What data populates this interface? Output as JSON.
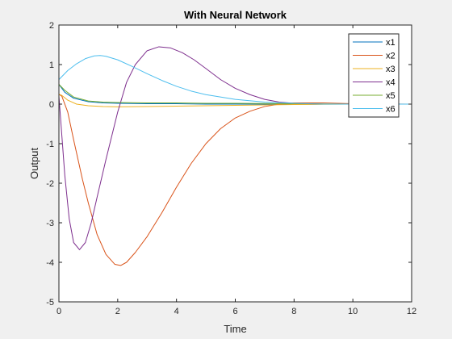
{
  "chart_data": {
    "type": "line",
    "title": "With Neural Network",
    "xlabel": "Time",
    "ylabel": "Output",
    "xlim": [
      0,
      12
    ],
    "ylim": [
      -5,
      2
    ],
    "xticks": [
      0,
      2,
      4,
      6,
      8,
      10,
      12
    ],
    "yticks": [
      -5,
      -4,
      -3,
      -2,
      -1,
      0,
      1,
      2
    ],
    "grid": false,
    "legend_position": "top-right",
    "series": [
      {
        "name": "x1",
        "color": "#0072BD",
        "x": [
          0,
          0.2,
          0.5,
          1,
          1.5,
          2,
          3,
          4,
          5,
          6,
          8,
          10,
          12
        ],
        "y": [
          0.5,
          0.3,
          0.15,
          0.06,
          0.03,
          0.02,
          0.01,
          0.01,
          0.0,
          0.0,
          0.0,
          0.0,
          0.0
        ]
      },
      {
        "name": "x2",
        "color": "#D95319",
        "x": [
          0,
          0.1,
          0.3,
          0.5,
          0.8,
          1,
          1.3,
          1.6,
          1.9,
          2.1,
          2.3,
          2.6,
          3,
          3.5,
          4,
          4.5,
          5,
          5.5,
          6,
          6.5,
          7,
          7.5,
          8,
          9,
          10,
          12
        ],
        "y": [
          0.25,
          0.2,
          -0.2,
          -0.9,
          -1.9,
          -2.5,
          -3.3,
          -3.8,
          -4.05,
          -4.08,
          -4.0,
          -3.75,
          -3.35,
          -2.75,
          -2.1,
          -1.5,
          -1.0,
          -0.62,
          -0.35,
          -0.18,
          -0.06,
          0.0,
          0.03,
          0.03,
          0.01,
          0.0
        ]
      },
      {
        "name": "x3",
        "color": "#EDB120",
        "x": [
          0,
          0.1,
          0.3,
          0.6,
          1,
          1.5,
          2,
          3,
          4,
          6,
          8,
          10,
          12
        ],
        "y": [
          0.25,
          0.22,
          0.1,
          0.0,
          -0.04,
          -0.06,
          -0.07,
          -0.06,
          -0.05,
          -0.03,
          -0.01,
          0.0,
          0.0
        ]
      },
      {
        "name": "x4",
        "color": "#7E2F8E",
        "x": [
          0,
          0.1,
          0.2,
          0.35,
          0.5,
          0.7,
          0.9,
          1.1,
          1.3,
          1.6,
          2,
          2.3,
          2.6,
          3,
          3.4,
          3.8,
          4.2,
          4.6,
          5,
          5.5,
          6,
          6.5,
          7,
          7.5,
          8,
          9,
          10,
          12
        ],
        "y": [
          0.2,
          -0.8,
          -1.8,
          -2.9,
          -3.5,
          -3.68,
          -3.5,
          -3.0,
          -2.35,
          -1.4,
          -0.2,
          0.55,
          1.0,
          1.35,
          1.45,
          1.42,
          1.3,
          1.12,
          0.9,
          0.62,
          0.4,
          0.24,
          0.12,
          0.05,
          0.02,
          0.0,
          0.0,
          0.0
        ]
      },
      {
        "name": "x5",
        "color": "#77AC30",
        "x": [
          0,
          0.2,
          0.5,
          1,
          1.5,
          2,
          3,
          4,
          5,
          6,
          8,
          10,
          12
        ],
        "y": [
          0.5,
          0.35,
          0.18,
          0.08,
          0.05,
          0.04,
          0.03,
          0.03,
          0.02,
          0.02,
          0.01,
          0.0,
          0.0
        ]
      },
      {
        "name": "x6",
        "color": "#4DBEEE",
        "x": [
          0,
          0.3,
          0.6,
          0.9,
          1.2,
          1.4,
          1.6,
          2,
          2.5,
          3,
          3.5,
          4,
          4.5,
          5,
          6,
          7,
          8,
          9,
          10,
          12
        ],
        "y": [
          0.62,
          0.85,
          1.02,
          1.15,
          1.22,
          1.23,
          1.21,
          1.12,
          0.95,
          0.77,
          0.6,
          0.45,
          0.33,
          0.24,
          0.12,
          0.05,
          0.02,
          0.0,
          0.0,
          0.0
        ]
      }
    ]
  }
}
